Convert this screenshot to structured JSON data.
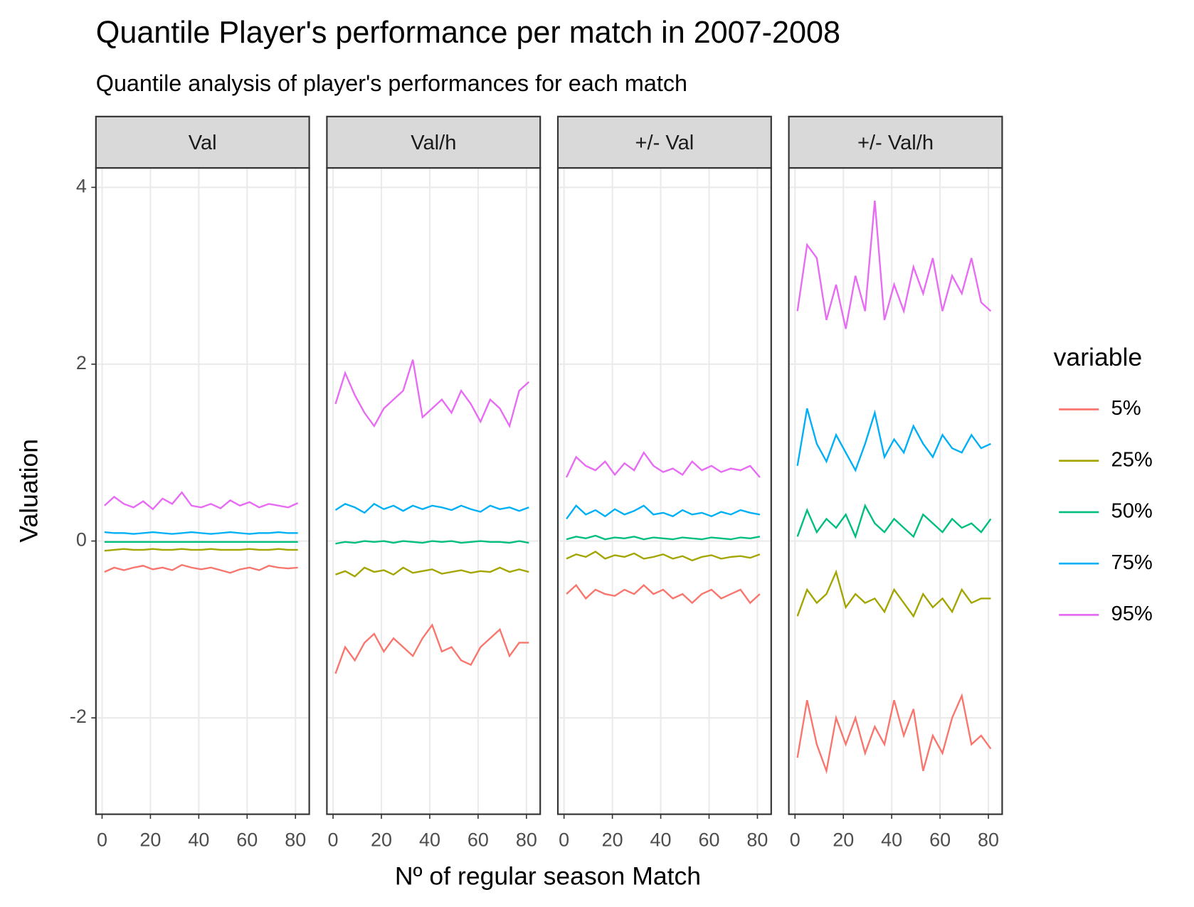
{
  "figure": {
    "title": "Quantile Player's performance per match in 2007-2008",
    "subtitle": "Quantile analysis of player's performances for each match",
    "x_label": "Nº of regular season Match",
    "y_label": "Valuation",
    "legend": {
      "title": "variable",
      "entries": [
        {
          "name": "5%",
          "color": "#F8766D"
        },
        {
          "name": "25%",
          "color": "#A3A500"
        },
        {
          "name": "50%",
          "color": "#00BF7D"
        },
        {
          "name": "75%",
          "color": "#00B0F6"
        },
        {
          "name": "95%",
          "color": "#E76BF3"
        }
      ]
    }
  },
  "chart_data": [
    {
      "type": "line",
      "title": "Val",
      "grid": true,
      "x": [
        1,
        5,
        9,
        13,
        17,
        21,
        25,
        29,
        33,
        37,
        41,
        45,
        49,
        53,
        57,
        61,
        65,
        69,
        73,
        77,
        81
      ],
      "xlim": [
        -2.55,
        85.7
      ],
      "xticks": [
        0,
        20,
        40,
        60,
        80
      ],
      "ylim": [
        -3.09,
        4.22
      ],
      "yticks": [
        -2,
        0,
        2,
        4
      ],
      "series": [
        {
          "values": [
            -0.35,
            -0.3,
            -0.33,
            -0.3,
            -0.28,
            -0.32,
            -0.3,
            -0.33,
            -0.27,
            -0.3,
            -0.32,
            -0.3,
            -0.33,
            -0.36,
            -0.32,
            -0.3,
            -0.33,
            -0.28,
            -0.3,
            -0.31,
            -0.3
          ]
        },
        {
          "values": [
            -0.11,
            -0.1,
            -0.09,
            -0.1,
            -0.1,
            -0.09,
            -0.1,
            -0.1,
            -0.09,
            -0.1,
            -0.1,
            -0.09,
            -0.1,
            -0.1,
            -0.1,
            -0.09,
            -0.1,
            -0.1,
            -0.09,
            -0.1,
            -0.1
          ]
        },
        {
          "values": [
            -0.01,
            -0.01,
            -0.01,
            -0.01,
            -0.01,
            -0.01,
            -0.01,
            -0.01,
            -0.01,
            -0.01,
            -0.01,
            -0.01,
            -0.01,
            -0.01,
            -0.01,
            -0.01,
            -0.01,
            -0.01,
            -0.01,
            -0.01,
            -0.01
          ]
        },
        {
          "values": [
            0.1,
            0.09,
            0.09,
            0.08,
            0.09,
            0.1,
            0.09,
            0.08,
            0.09,
            0.1,
            0.09,
            0.08,
            0.09,
            0.1,
            0.09,
            0.08,
            0.09,
            0.09,
            0.1,
            0.09,
            0.09
          ]
        },
        {
          "values": [
            0.4,
            0.5,
            0.42,
            0.38,
            0.45,
            0.36,
            0.48,
            0.42,
            0.55,
            0.4,
            0.38,
            0.42,
            0.37,
            0.46,
            0.4,
            0.44,
            0.38,
            0.42,
            0.4,
            0.38,
            0.43
          ]
        }
      ]
    },
    {
      "type": "line",
      "title": "Val/h",
      "grid": true,
      "x": [
        1,
        5,
        9,
        13,
        17,
        21,
        25,
        29,
        33,
        37,
        41,
        45,
        49,
        53,
        57,
        61,
        65,
        69,
        73,
        77,
        81
      ],
      "xlim": [
        -2.55,
        85.7
      ],
      "xticks": [
        0,
        20,
        40,
        60,
        80
      ],
      "ylim": [
        -3.09,
        4.22
      ],
      "yticks": [
        -2,
        0,
        2,
        4
      ],
      "series": [
        {
          "values": [
            -1.5,
            -1.2,
            -1.35,
            -1.15,
            -1.05,
            -1.25,
            -1.1,
            -1.2,
            -1.3,
            -1.1,
            -0.95,
            -1.25,
            -1.2,
            -1.35,
            -1.4,
            -1.2,
            -1.1,
            -1.0,
            -1.3,
            -1.15,
            -1.15
          ]
        },
        {
          "values": [
            -0.38,
            -0.34,
            -0.4,
            -0.3,
            -0.35,
            -0.33,
            -0.38,
            -0.3,
            -0.36,
            -0.34,
            -0.32,
            -0.37,
            -0.35,
            -0.33,
            -0.36,
            -0.34,
            -0.35,
            -0.3,
            -0.35,
            -0.32,
            -0.35
          ]
        },
        {
          "values": [
            -0.03,
            -0.01,
            -0.02,
            0.0,
            -0.01,
            0.0,
            -0.02,
            0.0,
            -0.01,
            -0.02,
            0.0,
            -0.01,
            0.0,
            -0.02,
            -0.01,
            0.0,
            -0.01,
            -0.01,
            -0.02,
            0.0,
            -0.02
          ]
        },
        {
          "values": [
            0.35,
            0.42,
            0.38,
            0.32,
            0.42,
            0.36,
            0.4,
            0.34,
            0.4,
            0.36,
            0.4,
            0.38,
            0.35,
            0.4,
            0.36,
            0.33,
            0.4,
            0.36,
            0.38,
            0.34,
            0.38
          ]
        },
        {
          "values": [
            1.55,
            1.9,
            1.65,
            1.45,
            1.3,
            1.5,
            1.6,
            1.7,
            2.05,
            1.4,
            1.5,
            1.6,
            1.45,
            1.7,
            1.55,
            1.35,
            1.6,
            1.5,
            1.3,
            1.7,
            1.8
          ]
        }
      ]
    },
    {
      "type": "line",
      "title": "+/- Val",
      "grid": true,
      "x": [
        1,
        5,
        9,
        13,
        17,
        21,
        25,
        29,
        33,
        37,
        41,
        45,
        49,
        53,
        57,
        61,
        65,
        69,
        73,
        77,
        81
      ],
      "xlim": [
        -2.55,
        85.7
      ],
      "xticks": [
        0,
        20,
        40,
        60,
        80
      ],
      "ylim": [
        -3.09,
        4.22
      ],
      "yticks": [
        -2,
        0,
        2,
        4
      ],
      "series": [
        {
          "values": [
            -0.6,
            -0.5,
            -0.65,
            -0.55,
            -0.6,
            -0.62,
            -0.55,
            -0.6,
            -0.5,
            -0.6,
            -0.55,
            -0.65,
            -0.6,
            -0.7,
            -0.6,
            -0.55,
            -0.65,
            -0.6,
            -0.55,
            -0.7,
            -0.6
          ]
        },
        {
          "values": [
            -0.2,
            -0.15,
            -0.18,
            -0.12,
            -0.2,
            -0.16,
            -0.18,
            -0.14,
            -0.2,
            -0.18,
            -0.15,
            -0.2,
            -0.17,
            -0.22,
            -0.18,
            -0.16,
            -0.2,
            -0.18,
            -0.17,
            -0.19,
            -0.15
          ]
        },
        {
          "values": [
            0.02,
            0.05,
            0.03,
            0.06,
            0.02,
            0.04,
            0.03,
            0.05,
            0.02,
            0.04,
            0.03,
            0.02,
            0.04,
            0.03,
            0.02,
            0.04,
            0.03,
            0.02,
            0.04,
            0.03,
            0.05
          ]
        },
        {
          "values": [
            0.25,
            0.4,
            0.3,
            0.35,
            0.28,
            0.36,
            0.3,
            0.34,
            0.4,
            0.3,
            0.32,
            0.28,
            0.35,
            0.3,
            0.32,
            0.28,
            0.33,
            0.3,
            0.35,
            0.32,
            0.3
          ]
        },
        {
          "values": [
            0.72,
            0.95,
            0.85,
            0.8,
            0.9,
            0.75,
            0.88,
            0.8,
            1.0,
            0.85,
            0.78,
            0.82,
            0.75,
            0.9,
            0.8,
            0.85,
            0.78,
            0.82,
            0.8,
            0.85,
            0.72
          ]
        }
      ]
    },
    {
      "type": "line",
      "title": "+/- Val/h",
      "grid": true,
      "x": [
        1,
        5,
        9,
        13,
        17,
        21,
        25,
        29,
        33,
        37,
        41,
        45,
        49,
        53,
        57,
        61,
        65,
        69,
        73,
        77,
        81
      ],
      "xlim": [
        -2.55,
        85.7
      ],
      "xticks": [
        0,
        20,
        40,
        60,
        80
      ],
      "ylim": [
        -3.09,
        4.22
      ],
      "yticks": [
        -2,
        0,
        2,
        4
      ],
      "series": [
        {
          "values": [
            -2.45,
            -1.8,
            -2.3,
            -2.6,
            -2.0,
            -2.3,
            -2.0,
            -2.4,
            -2.1,
            -2.3,
            -1.8,
            -2.2,
            -1.9,
            -2.6,
            -2.2,
            -2.4,
            -2.0,
            -1.75,
            -2.3,
            -2.2,
            -2.35
          ]
        },
        {
          "values": [
            -0.85,
            -0.55,
            -0.7,
            -0.6,
            -0.35,
            -0.75,
            -0.6,
            -0.7,
            -0.65,
            -0.8,
            -0.55,
            -0.7,
            -0.85,
            -0.6,
            -0.75,
            -0.65,
            -0.8,
            -0.55,
            -0.7,
            -0.65,
            -0.65
          ]
        },
        {
          "values": [
            0.05,
            0.35,
            0.1,
            0.25,
            0.15,
            0.3,
            0.05,
            0.4,
            0.2,
            0.1,
            0.25,
            0.15,
            0.05,
            0.3,
            0.2,
            0.1,
            0.25,
            0.15,
            0.2,
            0.1,
            0.25
          ]
        },
        {
          "values": [
            0.85,
            1.5,
            1.1,
            0.9,
            1.2,
            1.0,
            0.8,
            1.1,
            1.45,
            0.95,
            1.15,
            1.0,
            1.3,
            1.1,
            0.95,
            1.2,
            1.05,
            1.0,
            1.2,
            1.05,
            1.1
          ]
        },
        {
          "values": [
            2.6,
            3.35,
            3.2,
            2.5,
            2.9,
            2.4,
            3.0,
            2.6,
            3.85,
            2.5,
            2.9,
            2.6,
            3.1,
            2.8,
            3.2,
            2.6,
            3.0,
            2.8,
            3.2,
            2.7,
            2.6
          ]
        }
      ]
    }
  ]
}
